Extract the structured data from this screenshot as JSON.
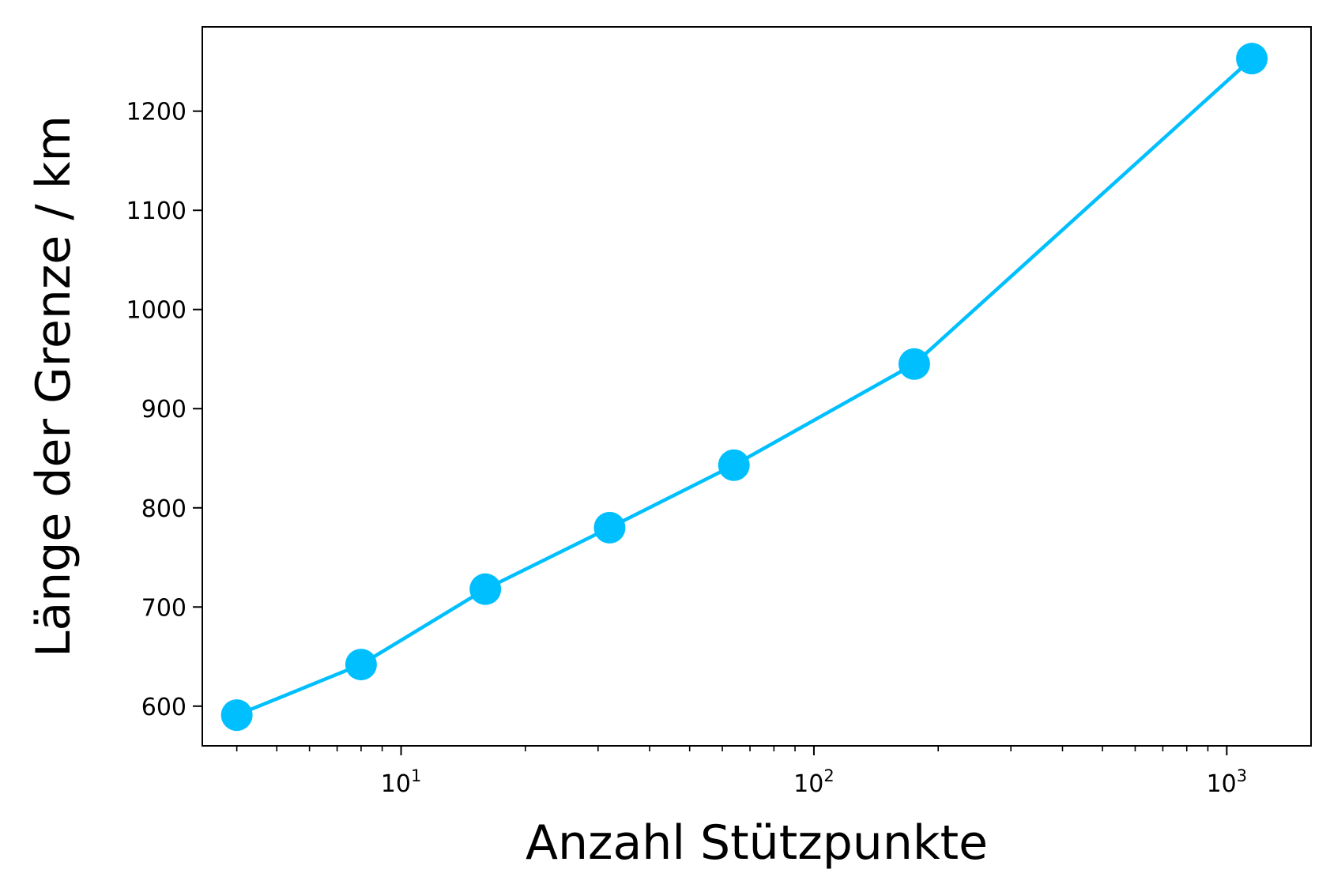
{
  "chart_data": {
    "type": "line",
    "xlabel": "Anzahl Stützpunkte",
    "ylabel": "Länge der Grenze / km",
    "x_scale": "log",
    "xlim": [
      3.3,
      1600
    ],
    "ylim": [
      560,
      1285
    ],
    "x_ticks": [
      {
        "value": 10,
        "base": "10",
        "exp": "1"
      },
      {
        "value": 100,
        "base": "10",
        "exp": "2"
      },
      {
        "value": 1000,
        "base": "10",
        "exp": "3"
      }
    ],
    "y_ticks": [
      600,
      700,
      800,
      900,
      1000,
      1100,
      1200
    ],
    "grid": false,
    "legend": "none",
    "series": [
      {
        "color": "#00bfff",
        "x": [
          4,
          8,
          16,
          32,
          64,
          175,
          1150
        ],
        "y": [
          591,
          642,
          718,
          780,
          843,
          945,
          1253
        ]
      }
    ]
  }
}
